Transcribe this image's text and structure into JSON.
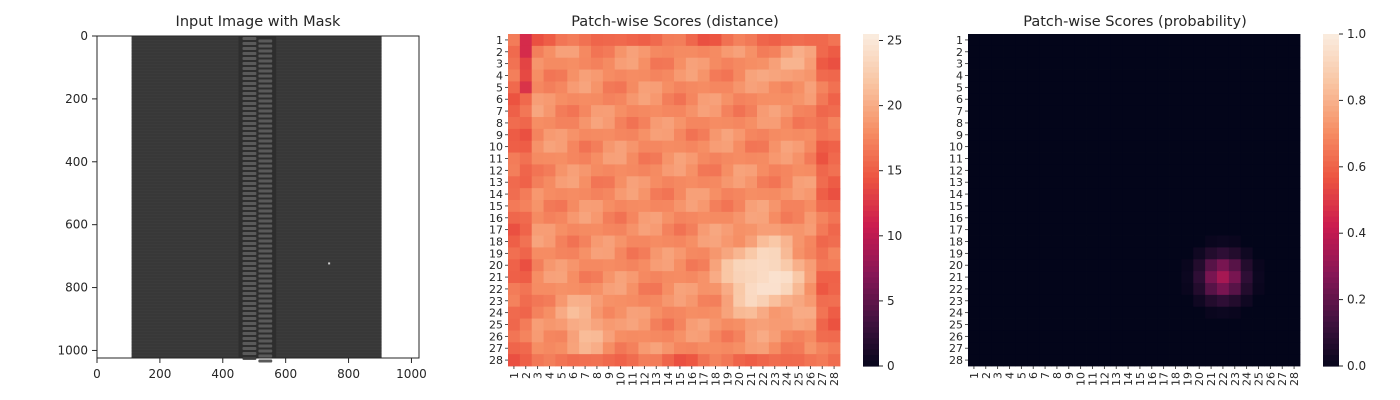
{
  "chart_data": [
    {
      "type": "image",
      "title": "Input Image with Mask",
      "xlim": [
        0,
        1024
      ],
      "ylim": [
        1024,
        0
      ],
      "x_ticks": [
        "0",
        "200",
        "400",
        "600",
        "800",
        "1000"
      ],
      "y_ticks": [
        "0",
        "200",
        "400",
        "600",
        "800",
        "1000"
      ],
      "colors": {
        "background": "#ffffff",
        "fabric": "#3b3b3b",
        "teeth": "#5a5a5a"
      }
    },
    {
      "type": "heatmap",
      "title": "Patch-wise Scores (distance)",
      "grid_size": 28,
      "row_labels": [
        "1",
        "2",
        "3",
        "4",
        "5",
        "6",
        "7",
        "8",
        "9",
        "10",
        "11",
        "12",
        "13",
        "14",
        "15",
        "16",
        "17",
        "18",
        "19",
        "20",
        "21",
        "22",
        "23",
        "24",
        "25",
        "26",
        "27",
        "28"
      ],
      "col_labels": [
        "1",
        "2",
        "3",
        "4",
        "5",
        "6",
        "7",
        "8",
        "9",
        "10",
        "11",
        "12",
        "13",
        "14",
        "15",
        "16",
        "17",
        "18",
        "19",
        "20",
        "21",
        "22",
        "23",
        "24",
        "25",
        "26",
        "27",
        "28"
      ],
      "colorbar": {
        "min": 0,
        "max": 25.5,
        "ticks": [
          "0",
          "5",
          "10",
          "15",
          "20",
          "25"
        ]
      },
      "value_summary": {
        "base": 18.2,
        "edge": 16.5,
        "hotspot_max": 25.5,
        "hotspot_row": 21,
        "hotspot_col": 22
      }
    },
    {
      "type": "heatmap",
      "title": "Patch-wise Scores (probability)",
      "grid_size": 28,
      "row_labels": [
        "1",
        "2",
        "3",
        "4",
        "5",
        "6",
        "7",
        "8",
        "9",
        "10",
        "11",
        "12",
        "13",
        "14",
        "15",
        "16",
        "17",
        "18",
        "19",
        "20",
        "21",
        "22",
        "23",
        "24",
        "25",
        "26",
        "27",
        "28"
      ],
      "col_labels": [
        "1",
        "2",
        "3",
        "4",
        "5",
        "6",
        "7",
        "8",
        "9",
        "10",
        "11",
        "12",
        "13",
        "14",
        "15",
        "16",
        "17",
        "18",
        "19",
        "20",
        "21",
        "22",
        "23",
        "24",
        "25",
        "26",
        "27",
        "28"
      ],
      "colorbar": {
        "min": 0,
        "max": 1.0,
        "ticks": [
          "0.0",
          "0.2",
          "0.4",
          "0.6",
          "0.8",
          "1.0"
        ]
      },
      "value_summary": {
        "base": 0.0,
        "hotspot_max": 0.35,
        "hotspot_row": 21,
        "hotspot_col": 22
      }
    }
  ]
}
